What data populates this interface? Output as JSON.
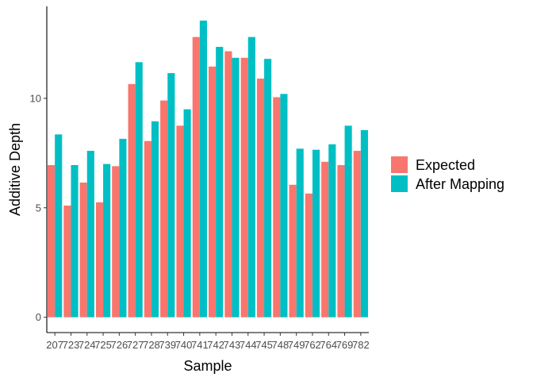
{
  "chart_data": {
    "type": "bar",
    "title": "",
    "xlabel": "Sample",
    "ylabel": "Additive Depth",
    "categories": [
      "207",
      "723",
      "724",
      "725",
      "726",
      "727",
      "728",
      "739",
      "740",
      "741",
      "742",
      "743",
      "744",
      "745",
      "748",
      "749",
      "762",
      "764",
      "769",
      "782"
    ],
    "series": [
      {
        "name": "Expected",
        "color": "#F8766D",
        "values": [
          6.95,
          5.1,
          6.15,
          5.25,
          6.9,
          10.65,
          8.05,
          9.9,
          8.75,
          12.8,
          11.45,
          12.15,
          11.85,
          10.9,
          10.05,
          6.05,
          5.65,
          7.1,
          6.95,
          7.6
        ]
      },
      {
        "name": "After Mapping",
        "color": "#00BFC4",
        "values": [
          8.35,
          6.95,
          7.6,
          7.0,
          8.15,
          11.65,
          8.95,
          11.15,
          9.5,
          13.55,
          12.35,
          11.85,
          12.8,
          11.8,
          10.2,
          7.7,
          7.65,
          7.9,
          8.75,
          8.55
        ]
      }
    ],
    "yticks": [
      0,
      5,
      10
    ],
    "ylim": [
      -0.7,
      14.2
    ],
    "grid": false,
    "legend_position": "right"
  }
}
